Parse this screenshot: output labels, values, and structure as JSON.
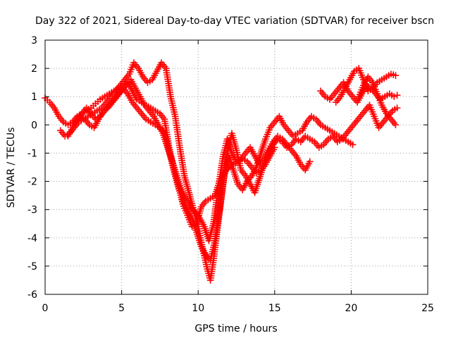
{
  "chart_data": {
    "type": "scatter",
    "title": "Day 322 of 2021, Sidereal Day-to-day VTEC variation (SDTVAR) for receiver bscn",
    "xlabel": "GPS time / hours",
    "ylabel": "SDTVAR / TECUs",
    "xlim": [
      0,
      25
    ],
    "ylim": [
      -6,
      3
    ],
    "xticks": [
      "0",
      "5",
      "10",
      "15",
      "20",
      "25"
    ],
    "yticks": [
      "-6",
      "-5",
      "-4",
      "-3",
      "-2",
      "-1",
      "0",
      "1",
      "2",
      "3"
    ],
    "grid": true,
    "marker": "plus",
    "color": "#ff0000",
    "series": [
      {
        "x": [
          0.0,
          0.3,
          0.6,
          0.9,
          1.2,
          1.5,
          1.8,
          2.1,
          2.4,
          2.7,
          3.0,
          3.3,
          3.6,
          3.9,
          4.2,
          4.5,
          4.8,
          5.1,
          5.4,
          5.7,
          6.0,
          6.3,
          6.6,
          6.9,
          7.2,
          7.5,
          7.8,
          8.1,
          8.4,
          8.7,
          9.0,
          9.3,
          9.6,
          9.9,
          10.2,
          10.5,
          10.8,
          11.1,
          11.4,
          11.7,
          12.0,
          12.3,
          12.6,
          12.9,
          13.2,
          13.5,
          13.8,
          14.1,
          14.4,
          14.7,
          15.0
        ],
        "y": [
          0.95,
          0.8,
          0.6,
          0.3,
          0.1,
          0.0,
          0.1,
          0.3,
          0.4,
          0.5,
          0.6,
          0.75,
          0.9,
          1.0,
          1.1,
          1.2,
          1.3,
          1.4,
          1.5,
          1.2,
          0.9,
          0.8,
          0.7,
          0.6,
          0.5,
          0.4,
          0.2,
          -0.8,
          -1.5,
          -2.1,
          -2.8,
          -3.2,
          -3.6,
          -3.5,
          -2.9,
          -2.7,
          -2.6,
          -2.5,
          -2.0,
          -1.7,
          -1.5,
          -1.4,
          -1.3,
          -1.2,
          -1.3,
          -1.5,
          -1.7,
          -1.6,
          -1.4,
          -1.1,
          -0.8
        ]
      },
      {
        "x": [
          1.0,
          1.3,
          1.6,
          1.9,
          2.2,
          2.5,
          2.8,
          3.1,
          3.4,
          3.7,
          4.0,
          4.3,
          4.6,
          4.9,
          5.2,
          5.5,
          5.8,
          6.1,
          6.4,
          6.7,
          7.0,
          7.3,
          7.6,
          7.9,
          8.2,
          8.5,
          8.8,
          9.1,
          9.4,
          9.7,
          10.0,
          10.3,
          10.6,
          10.8,
          11.0,
          11.3,
          11.6,
          11.9,
          12.2,
          12.5,
          12.8,
          13.1,
          13.4,
          13.7,
          14.0,
          14.3,
          14.6,
          14.9,
          15.2,
          15.5,
          15.8,
          16.1,
          16.4,
          16.7,
          17.0,
          17.3
        ],
        "y": [
          -0.2,
          -0.4,
          -0.3,
          -0.1,
          0.1,
          0.2,
          0.3,
          0.4,
          0.5,
          0.6,
          0.8,
          1.0,
          1.2,
          1.4,
          1.6,
          1.8,
          2.2,
          2.0,
          1.7,
          1.5,
          1.6,
          1.9,
          2.2,
          2.0,
          1.0,
          0.3,
          -0.8,
          -1.8,
          -2.4,
          -3.0,
          -3.6,
          -4.4,
          -5.1,
          -5.5,
          -4.8,
          -3.5,
          -2.2,
          -1.0,
          -0.3,
          -0.9,
          -1.6,
          -1.8,
          -2.1,
          -2.4,
          -1.9,
          -1.4,
          -0.9,
          -0.6,
          -0.4,
          -0.5,
          -0.7,
          -0.9,
          -1.1,
          -1.4,
          -1.6,
          -1.3
        ]
      },
      {
        "x": [
          1.5,
          1.8,
          2.1,
          2.4,
          2.7,
          3.0,
          3.3,
          3.6,
          3.9,
          4.2,
          4.5,
          4.8,
          5.1,
          5.4,
          5.7,
          6.0,
          6.3,
          6.6,
          6.9,
          7.2,
          7.5,
          7.8,
          8.1,
          8.4,
          8.7,
          9.0,
          9.3,
          9.6,
          9.9,
          10.2,
          10.5,
          10.8,
          11.1,
          11.4,
          11.7,
          12.0,
          12.3,
          12.6,
          12.9,
          13.2,
          13.5,
          13.8,
          14.1,
          14.4,
          14.7,
          15.0,
          15.3,
          15.6,
          15.9,
          16.2,
          16.5,
          16.8,
          17.1,
          17.4,
          17.7,
          18.0,
          18.3,
          18.6,
          18.9,
          19.2,
          19.5,
          19.8,
          20.1
        ],
        "y": [
          -0.4,
          -0.1,
          0.2,
          0.4,
          0.6,
          0.4,
          0.2,
          0.3,
          0.5,
          0.7,
          0.9,
          1.1,
          1.3,
          1.1,
          0.8,
          0.6,
          0.4,
          0.2,
          0.1,
          0.0,
          -0.1,
          -0.3,
          -0.9,
          -1.6,
          -2.2,
          -2.7,
          -3.0,
          -3.3,
          -3.8,
          -4.3,
          -4.6,
          -4.8,
          -4.1,
          -3.0,
          -1.8,
          -1.1,
          -1.6,
          -2.1,
          -2.3,
          -2.0,
          -1.8,
          -1.5,
          -1.0,
          -0.5,
          -0.1,
          0.1,
          0.3,
          0.0,
          -0.2,
          -0.4,
          -0.3,
          -0.2,
          0.1,
          0.3,
          0.2,
          0.0,
          -0.1,
          -0.2,
          -0.3,
          -0.4,
          -0.5,
          -0.6,
          -0.7
        ]
      },
      {
        "x": [
          2.0,
          2.3,
          2.6,
          2.9,
          3.2,
          3.5,
          3.8,
          4.1,
          4.4,
          4.7,
          5.0,
          5.3,
          5.6,
          5.9,
          6.2,
          6.5,
          6.8,
          7.1,
          7.4,
          7.7,
          8.0,
          8.3,
          8.6,
          8.9,
          9.2,
          9.5,
          9.8,
          10.1,
          10.4,
          10.7,
          11.0,
          11.3,
          11.6,
          11.9,
          12.2,
          12.5,
          12.8,
          13.1,
          13.4,
          13.7,
          14.0,
          14.3,
          14.6,
          14.9,
          15.2,
          15.5,
          15.8,
          16.1,
          16.4,
          16.7,
          17.0,
          17.3,
          17.6,
          17.9,
          18.2,
          18.5,
          18.8,
          19.1,
          19.4,
          19.7,
          20.0,
          20.3,
          20.6,
          20.9,
          21.2,
          21.5,
          21.8,
          22.1,
          22.4,
          22.7,
          23.0
        ],
        "y": [
          0.1,
          0.3,
          0.2,
          0.0,
          -0.1,
          0.2,
          0.5,
          0.6,
          0.8,
          1.0,
          1.2,
          1.4,
          1.6,
          1.3,
          1.0,
          0.7,
          0.5,
          0.3,
          0.0,
          -0.3,
          -0.8,
          -1.3,
          -1.8,
          -2.3,
          -2.6,
          -2.9,
          -3.1,
          -3.3,
          -3.6,
          -4.1,
          -3.5,
          -2.3,
          -1.2,
          -0.5,
          -1.0,
          -1.3,
          -1.2,
          -1.0,
          -0.8,
          -1.1,
          -1.4,
          -1.2,
          -0.9,
          -0.7,
          -0.5,
          -0.6,
          -0.8,
          -0.7,
          -0.5,
          -0.6,
          -0.4,
          -0.5,
          -0.6,
          -0.8,
          -0.7,
          -0.5,
          -0.4,
          -0.6,
          -0.5,
          -0.3,
          -0.1,
          0.1,
          0.3,
          0.5,
          0.7,
          0.3,
          -0.1,
          0.1,
          0.3,
          0.5,
          0.6
        ]
      },
      {
        "x": [
          18.0,
          18.3,
          18.6,
          18.9,
          19.2,
          19.5,
          19.8,
          20.1,
          20.4,
          20.7,
          21.0,
          21.3,
          21.6,
          21.9,
          22.2,
          22.5,
          22.8,
          23.0
        ],
        "y": [
          1.2,
          1.0,
          0.9,
          1.1,
          1.3,
          1.5,
          1.2,
          1.0,
          0.8,
          1.1,
          1.4,
          1.3,
          1.1,
          0.9,
          1.0,
          1.1,
          1.0,
          1.05
        ]
      },
      {
        "x": [
          19.0,
          19.3,
          19.6,
          19.9,
          20.2,
          20.5,
          20.8,
          21.1,
          21.4,
          21.7,
          22.0,
          22.3,
          22.6,
          22.9
        ],
        "y": [
          0.8,
          1.0,
          1.3,
          1.6,
          1.9,
          2.0,
          1.6,
          1.2,
          1.3,
          1.5,
          1.6,
          1.7,
          1.8,
          1.75
        ]
      },
      {
        "x": [
          20.5,
          20.8,
          21.1,
          21.4,
          21.7,
          22.0,
          22.3,
          22.6,
          22.9
        ],
        "y": [
          1.0,
          1.4,
          1.7,
          1.5,
          1.1,
          0.7,
          0.4,
          0.2,
          0.0
        ]
      }
    ]
  }
}
